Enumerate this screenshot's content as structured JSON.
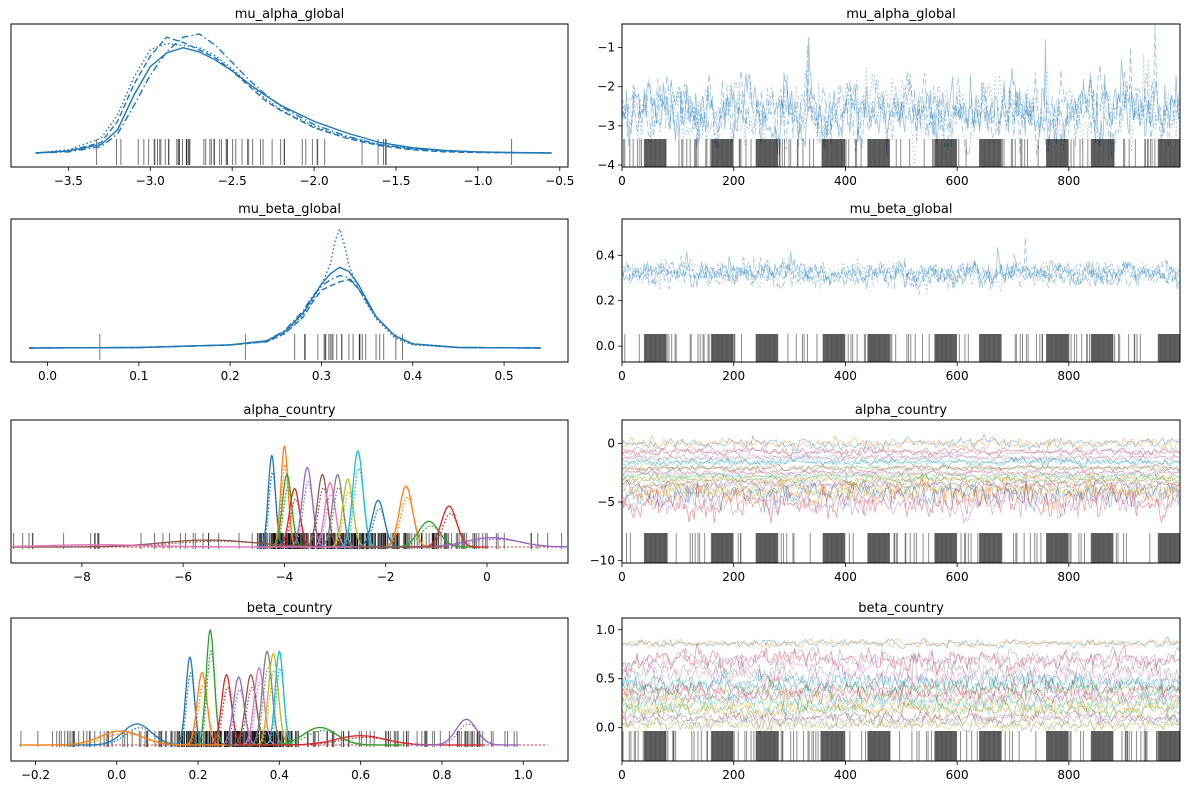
{
  "colors": {
    "single_chain": "#1f77b4",
    "country_palette": [
      "#1f77b4",
      "#ff7f0e",
      "#2ca02c",
      "#d62728",
      "#9467bd",
      "#8c564b",
      "#e377c2",
      "#7f7f7f",
      "#bcbd22",
      "#17becf"
    ],
    "rug": "#000000"
  },
  "chart_data": [
    {
      "type": "line",
      "plot": "kde",
      "title": "mu_alpha_global",
      "xlim": [
        -3.85,
        -0.45
      ],
      "xticks": [
        -3.5,
        -3.0,
        -2.5,
        -2.0,
        -1.5,
        -1.0,
        -0.5
      ],
      "xtick_labels": [
        "−3.5",
        "−3.0",
        "−2.5",
        "−2.0",
        "−1.5",
        "−1.0",
        "−0.5"
      ],
      "yticks": [],
      "series": [
        {
          "line_style": "solid",
          "x": [
            -3.7,
            -3.5,
            -3.3,
            -3.2,
            -3.1,
            -3.0,
            -2.9,
            -2.8,
            -2.7,
            -2.6,
            -2.5,
            -2.4,
            -2.3,
            -2.2,
            -2.0,
            -1.8,
            -1.6,
            -1.4,
            -1.2,
            -1.0,
            -0.8,
            -0.55
          ],
          "y": [
            0.0,
            0.02,
            0.08,
            0.22,
            0.55,
            0.82,
            0.95,
            1.0,
            0.96,
            0.88,
            0.78,
            0.66,
            0.55,
            0.45,
            0.3,
            0.19,
            0.1,
            0.05,
            0.025,
            0.01,
            0.005,
            0.0
          ]
        },
        {
          "line_style": "dashed",
          "x": [
            -3.7,
            -3.5,
            -3.3,
            -3.2,
            -3.1,
            -3.0,
            -2.9,
            -2.8,
            -2.7,
            -2.6,
            -2.5,
            -2.4,
            -2.3,
            -2.2,
            -2.0,
            -1.8,
            -1.6,
            -1.4,
            -1.2,
            -1.0,
            -0.8,
            -0.55
          ],
          "y": [
            0.0,
            0.02,
            0.1,
            0.3,
            0.65,
            0.92,
            1.1,
            1.05,
            0.98,
            0.9,
            0.78,
            0.64,
            0.5,
            0.4,
            0.24,
            0.14,
            0.07,
            0.03,
            0.01,
            0.005,
            0.002,
            0.0
          ]
        },
        {
          "line_style": "dotted",
          "x": [
            -3.7,
            -3.5,
            -3.3,
            -3.2,
            -3.1,
            -3.0,
            -2.9,
            -2.8,
            -2.7,
            -2.6,
            -2.5,
            -2.4,
            -2.3,
            -2.2,
            -2.0,
            -1.8,
            -1.6,
            -1.4,
            -1.2,
            -1.0,
            -0.8,
            -0.55
          ],
          "y": [
            0.0,
            0.03,
            0.14,
            0.36,
            0.72,
            0.98,
            1.04,
            1.02,
            1.0,
            0.92,
            0.8,
            0.66,
            0.52,
            0.41,
            0.25,
            0.15,
            0.08,
            0.04,
            0.02,
            0.01,
            0.004,
            0.0
          ]
        },
        {
          "line_style": "dashdot",
          "x": [
            -3.7,
            -3.5,
            -3.3,
            -3.2,
            -3.1,
            -3.0,
            -2.9,
            -2.8,
            -2.7,
            -2.6,
            -2.5,
            -2.4,
            -2.3,
            -2.2,
            -2.0,
            -1.8,
            -1.6,
            -1.4,
            -1.2,
            -1.0,
            -0.8,
            -0.55
          ],
          "y": [
            0.0,
            0.01,
            0.06,
            0.18,
            0.45,
            0.74,
            0.96,
            1.1,
            1.13,
            1.02,
            0.86,
            0.7,
            0.56,
            0.44,
            0.27,
            0.16,
            0.08,
            0.04,
            0.02,
            0.01,
            0.003,
            0.0
          ]
        }
      ]
    },
    {
      "type": "line",
      "plot": "trace",
      "title": "mu_alpha_global",
      "xlim": [
        0,
        999
      ],
      "ylim": [
        -4.05,
        -0.4
      ],
      "xticks": [
        0,
        200,
        400,
        600,
        800
      ],
      "xtick_labels": [
        "0",
        "200",
        "400",
        "600",
        "800"
      ],
      "yticks": [
        -4,
        -3,
        -2,
        -1
      ],
      "ytick_labels": [
        "−4",
        "−3",
        "−2",
        "−1"
      ],
      "center": -2.65,
      "spread": 0.6,
      "series": [
        {
          "line_style": "solid"
        },
        {
          "line_style": "dashed"
        },
        {
          "line_style": "dotted"
        },
        {
          "line_style": "dashdot"
        }
      ]
    },
    {
      "type": "line",
      "plot": "kde",
      "title": "mu_beta_global",
      "xlim": [
        -0.04,
        0.57
      ],
      "xticks": [
        0.0,
        0.1,
        0.2,
        0.3,
        0.4,
        0.5
      ],
      "xtick_labels": [
        "0.0",
        "0.1",
        "0.2",
        "0.3",
        "0.4",
        "0.5"
      ],
      "yticks": [],
      "series": [
        {
          "line_style": "solid",
          "x": [
            -0.02,
            0.1,
            0.2,
            0.24,
            0.26,
            0.28,
            0.29,
            0.3,
            0.31,
            0.32,
            0.33,
            0.34,
            0.35,
            0.36,
            0.38,
            0.4,
            0.45,
            0.54
          ],
          "y": [
            0.0,
            0.005,
            0.03,
            0.07,
            0.16,
            0.34,
            0.48,
            0.62,
            0.72,
            0.78,
            0.74,
            0.62,
            0.46,
            0.3,
            0.12,
            0.04,
            0.005,
            0.0
          ]
        },
        {
          "line_style": "dashed",
          "x": [
            -0.02,
            0.1,
            0.2,
            0.24,
            0.26,
            0.28,
            0.29,
            0.3,
            0.31,
            0.32,
            0.33,
            0.34,
            0.35,
            0.36,
            0.38,
            0.4,
            0.45,
            0.54
          ],
          "y": [
            0.0,
            0.005,
            0.03,
            0.06,
            0.14,
            0.3,
            0.44,
            0.56,
            0.6,
            0.64,
            0.66,
            0.58,
            0.44,
            0.3,
            0.12,
            0.04,
            0.005,
            0.0
          ]
        },
        {
          "line_style": "dotted",
          "x": [
            -0.02,
            0.1,
            0.2,
            0.24,
            0.26,
            0.28,
            0.29,
            0.3,
            0.31,
            0.315,
            0.32,
            0.325,
            0.33,
            0.34,
            0.35,
            0.36,
            0.38,
            0.4,
            0.45,
            0.54
          ],
          "y": [
            0.0,
            0.005,
            0.03,
            0.06,
            0.14,
            0.32,
            0.46,
            0.6,
            0.82,
            1.04,
            1.15,
            1.0,
            0.8,
            0.58,
            0.42,
            0.28,
            0.1,
            0.03,
            0.005,
            0.0
          ]
        },
        {
          "line_style": "dashdot",
          "x": [
            -0.02,
            0.1,
            0.2,
            0.24,
            0.26,
            0.28,
            0.29,
            0.3,
            0.31,
            0.32,
            0.33,
            0.34,
            0.35,
            0.36,
            0.38,
            0.4,
            0.45,
            0.54
          ],
          "y": [
            0.0,
            0.005,
            0.03,
            0.07,
            0.17,
            0.36,
            0.5,
            0.6,
            0.66,
            0.7,
            0.68,
            0.58,
            0.44,
            0.3,
            0.12,
            0.04,
            0.005,
            0.0
          ]
        }
      ]
    },
    {
      "type": "line",
      "plot": "trace",
      "title": "mu_beta_global",
      "xlim": [
        0,
        999
      ],
      "ylim": [
        -0.07,
        0.56
      ],
      "xticks": [
        0,
        200,
        400,
        600,
        800
      ],
      "xtick_labels": [
        "0",
        "200",
        "400",
        "600",
        "800"
      ],
      "yticks": [
        0.0,
        0.2,
        0.4
      ],
      "ytick_labels": [
        "0.0",
        "0.2",
        "0.4"
      ],
      "center": 0.32,
      "spread": 0.04,
      "series": [
        {
          "line_style": "solid"
        },
        {
          "line_style": "dashed"
        },
        {
          "line_style": "dotted"
        },
        {
          "line_style": "dashdot"
        }
      ]
    },
    {
      "type": "line",
      "plot": "kde-multi",
      "title": "alpha_country",
      "xlim": [
        -9.4,
        1.6
      ],
      "xticks": [
        -8,
        -6,
        -4,
        -2,
        0
      ],
      "xtick_labels": [
        "−8",
        "−6",
        "−4",
        "−2",
        "0"
      ],
      "yticks": [],
      "support": [
        -9.0,
        1.5
      ],
      "peaks": [
        {
          "mu": -4.25,
          "height": 0.78,
          "width": 0.07
        },
        {
          "mu": -4.0,
          "height": 0.86,
          "width": 0.07
        },
        {
          "mu": -3.95,
          "height": 0.62,
          "width": 0.09
        },
        {
          "mu": -3.8,
          "height": 0.5,
          "width": 0.1
        },
        {
          "mu": -3.55,
          "height": 0.68,
          "width": 0.1
        },
        {
          "mu": -3.25,
          "height": 0.62,
          "width": 0.1
        },
        {
          "mu": -3.1,
          "height": 0.55,
          "width": 0.1
        },
        {
          "mu": -2.95,
          "height": 0.62,
          "width": 0.1
        },
        {
          "mu": -2.75,
          "height": 0.58,
          "width": 0.1
        },
        {
          "mu": -2.55,
          "height": 0.82,
          "width": 0.1
        },
        {
          "mu": -2.15,
          "height": 0.4,
          "width": 0.12
        },
        {
          "mu": -1.6,
          "height": 0.52,
          "width": 0.13
        },
        {
          "mu": -1.15,
          "height": 0.22,
          "width": 0.2
        },
        {
          "mu": -0.75,
          "height": 0.35,
          "width": 0.15
        },
        {
          "mu": 0.1,
          "height": 0.08,
          "width": 0.5
        },
        {
          "mu": -5.5,
          "height": 0.06,
          "width": 0.9
        },
        {
          "mu": -7.7,
          "height": 0.02,
          "width": 1.0
        }
      ]
    },
    {
      "type": "line",
      "plot": "trace-multi",
      "title": "alpha_country",
      "xlim": [
        0,
        999
      ],
      "ylim": [
        -10.2,
        2.0
      ],
      "xticks": [
        0,
        200,
        400,
        600,
        800
      ],
      "xtick_labels": [
        "0",
        "200",
        "400",
        "600",
        "800"
      ],
      "yticks": [
        -10,
        -5,
        0
      ],
      "ytick_labels": [
        "−10",
        "−5",
        "0"
      ],
      "levels": [
        0.0,
        -0.7,
        -1.2,
        -1.6,
        -2.1,
        -2.5,
        -2.8,
        -3.1,
        -3.5,
        -4.0,
        -4.3,
        -5.0
      ],
      "level_spreads": [
        0.35,
        0.25,
        0.2,
        0.25,
        0.2,
        0.2,
        0.2,
        0.25,
        0.3,
        0.5,
        0.8,
        0.9
      ]
    },
    {
      "type": "line",
      "plot": "kde-multi",
      "title": "beta_country",
      "xlim": [
        -0.26,
        1.11
      ],
      "xticks": [
        -0.2,
        0.0,
        0.2,
        0.4,
        0.6,
        0.8,
        1.0
      ],
      "xtick_labels": [
        "−0.2",
        "0.0",
        "0.2",
        "0.4",
        "0.6",
        "0.8",
        "1.0"
      ],
      "yticks": [],
      "support": [
        -0.22,
        1.06
      ],
      "peaks": [
        {
          "mu": 0.18,
          "height": 0.75,
          "width": 0.01
        },
        {
          "mu": 0.21,
          "height": 0.62,
          "width": 0.012
        },
        {
          "mu": 0.23,
          "height": 0.98,
          "width": 0.01
        },
        {
          "mu": 0.27,
          "height": 0.6,
          "width": 0.012
        },
        {
          "mu": 0.3,
          "height": 0.58,
          "width": 0.013
        },
        {
          "mu": 0.33,
          "height": 0.6,
          "width": 0.013
        },
        {
          "mu": 0.35,
          "height": 0.66,
          "width": 0.012
        },
        {
          "mu": 0.37,
          "height": 0.8,
          "width": 0.012
        },
        {
          "mu": 0.385,
          "height": 0.78,
          "width": 0.012
        },
        {
          "mu": 0.4,
          "height": 0.8,
          "width": 0.01
        },
        {
          "mu": 0.05,
          "height": 0.18,
          "width": 0.035
        },
        {
          "mu": 0.01,
          "height": 0.12,
          "width": 0.05
        },
        {
          "mu": 0.5,
          "height": 0.15,
          "width": 0.04
        },
        {
          "mu": 0.6,
          "height": 0.08,
          "width": 0.06
        },
        {
          "mu": 0.86,
          "height": 0.22,
          "width": 0.025
        }
      ]
    },
    {
      "type": "line",
      "plot": "trace-multi",
      "title": "beta_country",
      "xlim": [
        0,
        999
      ],
      "ylim": [
        -0.34,
        1.12
      ],
      "xticks": [
        0,
        200,
        400,
        600,
        800
      ],
      "xtick_labels": [
        "0",
        "200",
        "400",
        "600",
        "800"
      ],
      "yticks": [
        0.0,
        0.5,
        1.0
      ],
      "ytick_labels": [
        "0.0",
        "0.5",
        "1.0"
      ],
      "levels": [
        0.86,
        0.7,
        0.55,
        0.45,
        0.38,
        0.32,
        0.25,
        0.18,
        0.1,
        0.03
      ],
      "level_spreads": [
        0.03,
        0.08,
        0.1,
        0.08,
        0.07,
        0.07,
        0.07,
        0.06,
        0.05,
        0.05
      ]
    }
  ]
}
